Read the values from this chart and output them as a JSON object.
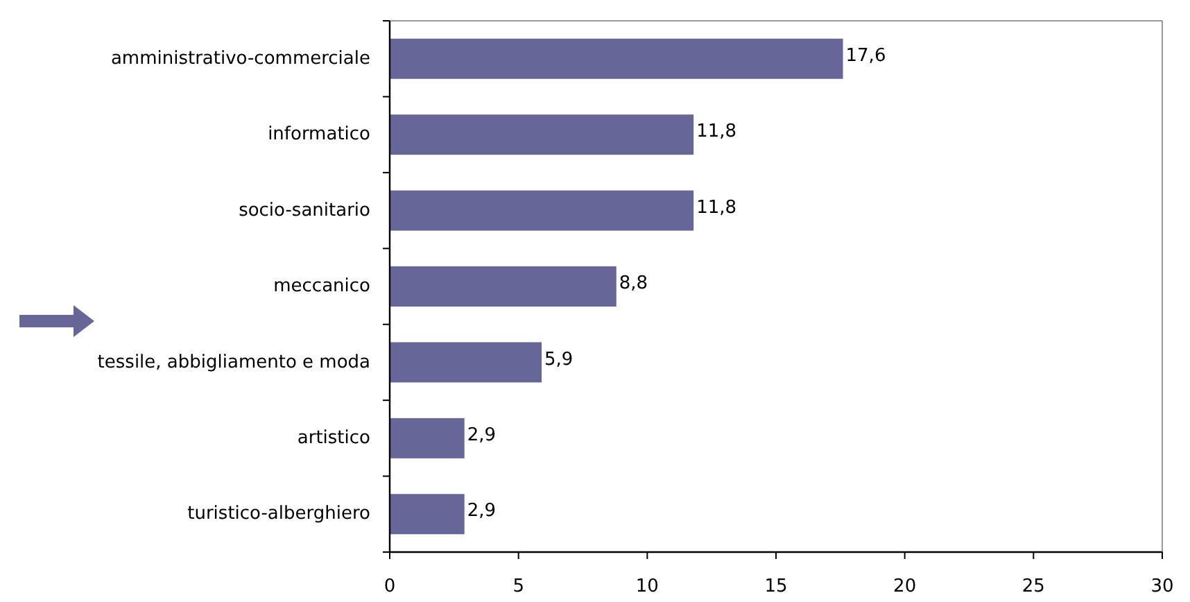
{
  "chart_data": {
    "type": "bar",
    "orientation": "horizontal",
    "categories": [
      "amministrativo-commerciale",
      "informatico",
      "socio-sanitario",
      "meccanico",
      "tessile, abbigliamento e moda",
      "artistico",
      "turistico-alberghiero"
    ],
    "values": [
      17.6,
      11.8,
      11.8,
      8.8,
      5.9,
      2.9,
      2.9
    ],
    "value_labels": [
      "17,6",
      "11,8",
      "11,8",
      "8,8",
      "5,9",
      "2,9",
      "2,9"
    ],
    "color": "#666699",
    "xlim": [
      0,
      30
    ],
    "xticks": [
      0,
      5,
      10,
      15,
      20,
      25,
      30
    ]
  }
}
